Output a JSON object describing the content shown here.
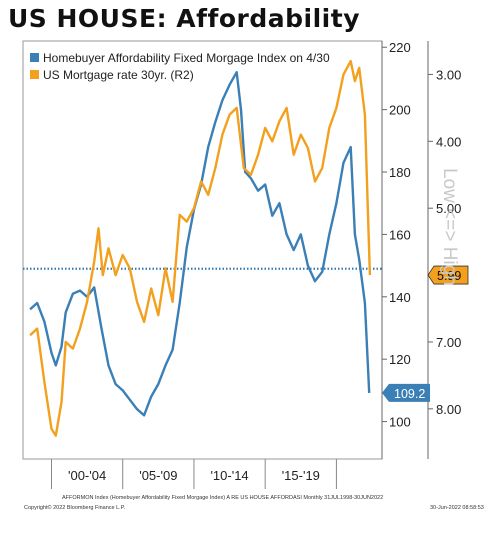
{
  "title": "US HOUSE: Affordability",
  "colors": {
    "affordability": "#3a7fb5",
    "mortgage": "#f2a01e",
    "reference": "#3a7fb5"
  },
  "chart_data": {
    "type": "line",
    "x_labels": [
      "'00-'04",
      "'05-'09",
      "'10-'14",
      "'15-'19"
    ],
    "grid": false,
    "right_axis": {
      "ticks": [
        100,
        120,
        140,
        160,
        180,
        200,
        220
      ],
      "range": [
        88,
        222
      ]
    },
    "left_axis": {
      "ticks": [
        "3.00",
        "4.00",
        "5.00",
        "6.00",
        "7.00",
        "8.00"
      ],
      "inverted": true,
      "range": [
        8.75,
        2.5
      ]
    },
    "side_label": "Low <=> High",
    "reference_line": 149,
    "series": [
      {
        "name": "Homebuyer Affordability Fixed Morgage Index on 4/30",
        "axis": "right",
        "last_value_label": "109.2",
        "points": [
          [
            1998.5,
            136
          ],
          [
            1999.0,
            138
          ],
          [
            1999.5,
            132
          ],
          [
            2000.0,
            122
          ],
          [
            2000.3,
            118
          ],
          [
            2000.7,
            124
          ],
          [
            2001.0,
            135
          ],
          [
            2001.5,
            141
          ],
          [
            2002.0,
            142
          ],
          [
            2002.5,
            140
          ],
          [
            2003.0,
            143
          ],
          [
            2003.5,
            130
          ],
          [
            2004.0,
            118
          ],
          [
            2004.5,
            112
          ],
          [
            2005.0,
            110
          ],
          [
            2005.5,
            107
          ],
          [
            2006.0,
            104
          ],
          [
            2006.5,
            102
          ],
          [
            2007.0,
            108
          ],
          [
            2007.5,
            112
          ],
          [
            2008.0,
            118
          ],
          [
            2008.5,
            123
          ],
          [
            2009.0,
            138
          ],
          [
            2009.5,
            156
          ],
          [
            2010.0,
            168
          ],
          [
            2010.5,
            176
          ],
          [
            2011.0,
            188
          ],
          [
            2011.5,
            196
          ],
          [
            2012.0,
            203
          ],
          [
            2012.5,
            208
          ],
          [
            2013.0,
            212
          ],
          [
            2013.3,
            200
          ],
          [
            2013.6,
            180
          ],
          [
            2014.0,
            178
          ],
          [
            2014.5,
            174
          ],
          [
            2015.0,
            176
          ],
          [
            2015.5,
            166
          ],
          [
            2016.0,
            170
          ],
          [
            2016.5,
            160
          ],
          [
            2017.0,
            155
          ],
          [
            2017.5,
            160
          ],
          [
            2018.0,
            150
          ],
          [
            2018.5,
            145
          ],
          [
            2019.0,
            148
          ],
          [
            2019.5,
            160
          ],
          [
            2020.0,
            170
          ],
          [
            2020.5,
            183
          ],
          [
            2021.0,
            188
          ],
          [
            2021.3,
            160
          ],
          [
            2021.6,
            152
          ],
          [
            2022.0,
            138
          ],
          [
            2022.3,
            109.2
          ]
        ]
      },
      {
        "name": "US Mortgage rate 30yr. (R2)",
        "axis": "left",
        "last_value_label": "5.99",
        "points": [
          [
            1998.5,
            6.9
          ],
          [
            1999.0,
            6.8
          ],
          [
            1999.5,
            7.6
          ],
          [
            2000.0,
            8.3
          ],
          [
            2000.3,
            8.4
          ],
          [
            2000.7,
            7.9
          ],
          [
            2001.0,
            7.0
          ],
          [
            2001.5,
            7.1
          ],
          [
            2002.0,
            6.8
          ],
          [
            2002.5,
            6.4
          ],
          [
            2003.0,
            5.8
          ],
          [
            2003.3,
            5.3
          ],
          [
            2003.6,
            6.0
          ],
          [
            2004.0,
            5.6
          ],
          [
            2004.5,
            6.0
          ],
          [
            2005.0,
            5.7
          ],
          [
            2005.5,
            5.9
          ],
          [
            2006.0,
            6.4
          ],
          [
            2006.5,
            6.7
          ],
          [
            2007.0,
            6.2
          ],
          [
            2007.5,
            6.6
          ],
          [
            2008.0,
            5.9
          ],
          [
            2008.5,
            6.4
          ],
          [
            2009.0,
            5.1
          ],
          [
            2009.5,
            5.2
          ],
          [
            2010.0,
            5.0
          ],
          [
            2010.5,
            4.6
          ],
          [
            2011.0,
            4.8
          ],
          [
            2011.5,
            4.4
          ],
          [
            2012.0,
            3.9
          ],
          [
            2012.5,
            3.6
          ],
          [
            2013.0,
            3.5
          ],
          [
            2013.5,
            4.4
          ],
          [
            2014.0,
            4.5
          ],
          [
            2014.5,
            4.2
          ],
          [
            2015.0,
            3.8
          ],
          [
            2015.5,
            4.0
          ],
          [
            2016.0,
            3.7
          ],
          [
            2016.5,
            3.5
          ],
          [
            2017.0,
            4.2
          ],
          [
            2017.5,
            3.9
          ],
          [
            2018.0,
            4.1
          ],
          [
            2018.5,
            4.6
          ],
          [
            2019.0,
            4.4
          ],
          [
            2019.5,
            3.8
          ],
          [
            2020.0,
            3.5
          ],
          [
            2020.5,
            3.0
          ],
          [
            2021.0,
            2.8
          ],
          [
            2021.3,
            3.1
          ],
          [
            2021.6,
            2.9
          ],
          [
            2022.0,
            3.6
          ],
          [
            2022.2,
            5.0
          ],
          [
            2022.35,
            6.0
          ]
        ]
      }
    ],
    "last_value_tags": {
      "affordability": "109.2",
      "mortgage": "5.99"
    }
  },
  "footer": {
    "line1": "AFFORMON Index (Homebuyer Affordability Fixed Morgage Index) A RE US HOUSE AFFORDASI  Monthly 31JUL1998-30JUN2022",
    "copyright": "Copyright© 2022 Bloomberg Finance L.P.",
    "timestamp": "30-Jun-2022 08:58:53"
  }
}
